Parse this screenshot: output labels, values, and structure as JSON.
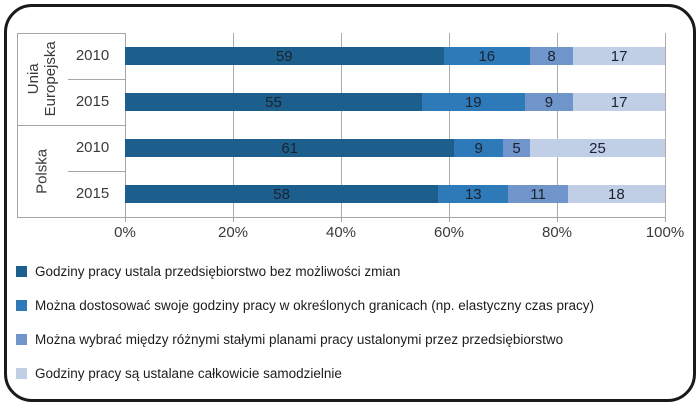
{
  "chart_data": {
    "type": "bar",
    "orientation": "horizontal",
    "stacked": true,
    "title": "",
    "xlabel": "",
    "ylabel": "",
    "xlim": [
      0,
      100
    ],
    "grid": true,
    "legend_position": "bottom-left",
    "value_labels": "inside-center",
    "x_ticks": [
      "0%",
      "20%",
      "40%",
      "60%",
      "80%",
      "100%"
    ],
    "groups": [
      {
        "label": "Unia Europejska",
        "row_indexes": [
          0,
          1
        ]
      },
      {
        "label": "Polska",
        "row_indexes": [
          2,
          3
        ]
      }
    ],
    "rows": [
      {
        "group": "Unia Europejska",
        "year": "2010",
        "values": [
          59,
          16,
          8,
          17
        ]
      },
      {
        "group": "Unia Europejska",
        "year": "2015",
        "values": [
          55,
          19,
          9,
          17
        ]
      },
      {
        "group": "Polska",
        "year": "2010",
        "values": [
          61,
          9,
          5,
          25
        ]
      },
      {
        "group": "Polska",
        "year": "2015",
        "values": [
          58,
          13,
          11,
          18
        ]
      }
    ],
    "series": [
      {
        "name": "Godziny pracy ustala przedsiębiorstwo bez możliwości zmian",
        "color": "#1c5f8c"
      },
      {
        "name": "Można dostosować swoje godziny pracy w określonych granicach (np. elastyczny czas pracy)",
        "color": "#2e79b8"
      },
      {
        "name": "Można wybrać między różnymi stałymi planami pracy ustalonymi przez przedsiębiorstwo",
        "color": "#7095ca"
      },
      {
        "name": "Godziny pracy są ustalane całkowicie samodzielnie",
        "color": "#c0cee6"
      }
    ]
  },
  "styles": {
    "frame_border": "#1a1a1a",
    "axis_line": "#a6a6a6",
    "gridline": "#ababab",
    "bar_label_text": "#1b2230",
    "axis_text": "#3a3a3a",
    "background": "#ffffff"
  }
}
